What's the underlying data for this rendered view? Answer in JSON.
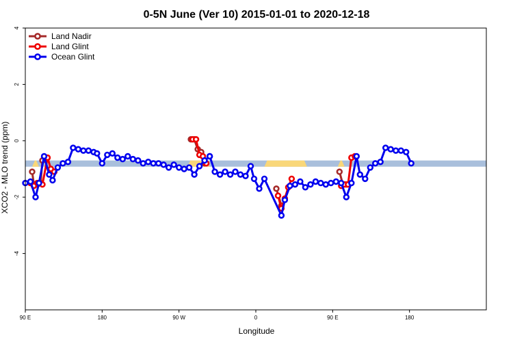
{
  "chart_data": {
    "type": "line",
    "title": "0-5N June (Ver 10)   2015-01-01 to 2020-12-18",
    "xlabel": "Longitude",
    "ylabel": "XCO2 - MLO trend (ppm)",
    "xlim": [
      -90,
      180
    ],
    "ylim": [
      -6,
      4
    ],
    "x_ticks": [
      {
        "value": -90,
        "label": "90 E"
      },
      {
        "value": -45,
        "label": "180"
      },
      {
        "value": 0,
        "label": "90 W"
      },
      {
        "value": 45,
        "label": "0"
      },
      {
        "value": 90,
        "label": "90 E"
      },
      {
        "value": 135,
        "label": "180"
      }
    ],
    "y_ticks": [
      {
        "value": -4,
        "label": "-4"
      },
      {
        "value": -2,
        "label": "-2"
      },
      {
        "value": 0,
        "label": "0"
      },
      {
        "value": 2,
        "label": "2"
      },
      {
        "value": 4,
        "label": "4"
      }
    ],
    "legend_position": "top-left",
    "surface_band": {
      "y_range": [
        -0.92,
        -0.7
      ],
      "ocean_color": "#a9bfdc",
      "land_color": "#f9d779",
      "land_segments": [
        [
          -86,
          -82
        ],
        [
          5,
          18
        ],
        [
          50,
          75
        ],
        [
          93,
          97
        ]
      ]
    },
    "series": [
      {
        "name": "Land Nadir",
        "color": "#a52a2a",
        "segments": [
          {
            "x": [
              -86,
              -85,
              -83,
              -81,
              -80
            ],
            "y": [
              -1.1,
              -1.55,
              -1.55,
              -1.5,
              -0.7
            ]
          },
          {
            "x": [
              7,
              9,
              11,
              13,
              15
            ],
            "y": [
              0.05,
              0.05,
              -0.3,
              -0.4,
              -0.8
            ]
          },
          {
            "x": [
              57,
              60
            ],
            "y": [
              -1.7,
              -2.3
            ]
          },
          {
            "x": [
              94,
              96,
              98
            ],
            "y": [
              -1.1,
              -1.55,
              -1.55
            ]
          }
        ]
      },
      {
        "name": "Land Glint",
        "color": "#ee0000",
        "segments": [
          {
            "x": [
              -87,
              -85,
              -83,
              -80,
              -77,
              -75,
              -73
            ],
            "y": [
              -1.5,
              -1.6,
              -1.5,
              -1.55,
              -0.6,
              -1.0,
              -1.1
            ]
          },
          {
            "x": [
              8,
              10,
              12,
              14,
              16
            ],
            "y": [
              0.05,
              0.05,
              -0.5,
              -0.55,
              -0.8
            ]
          },
          {
            "x": [
              58,
              60,
              62,
              64,
              66
            ],
            "y": [
              -1.95,
              -2.4,
              -2.05,
              -1.65,
              -1.35
            ]
          },
          {
            "x": [
              95,
              97,
              99,
              101,
              103
            ],
            "y": [
              -1.6,
              -1.55,
              -1.55,
              -0.6,
              -0.55
            ]
          }
        ]
      },
      {
        "name": "Ocean Glint",
        "color": "#0000ee",
        "segments": [
          {
            "x": [
              -90,
              -87,
              -84,
              -82,
              -79,
              -76,
              -74,
              -71,
              -68,
              -65,
              -62,
              -59,
              -56,
              -53,
              -50,
              -48,
              -45,
              -42,
              -39,
              -36,
              -33,
              -30,
              -27,
              -24,
              -21,
              -18,
              -15,
              -12,
              -9,
              -6,
              -3,
              0,
              3,
              6,
              9,
              12,
              15,
              18
            ],
            "y": [
              -1.5,
              -1.45,
              -2.0,
              -1.5,
              -0.55,
              -1.2,
              -1.4,
              -0.95,
              -0.8,
              -0.75,
              -0.25,
              -0.3,
              -0.35,
              -0.35,
              -0.4,
              -0.45,
              -0.8,
              -0.5,
              -0.45,
              -0.6,
              -0.65,
              -0.55,
              -0.65,
              -0.7,
              -0.8,
              -0.75,
              -0.8,
              -0.8,
              -0.85,
              -0.95,
              -0.85,
              -0.95,
              -1.0,
              -0.95,
              -1.2,
              -0.9,
              -0.7,
              -0.55
            ]
          },
          {
            "x": [
              18,
              21,
              24,
              27,
              30,
              33,
              36,
              39,
              42,
              44,
              47,
              50,
              60,
              62,
              65,
              68,
              71,
              74,
              77,
              80,
              83,
              86,
              89,
              92,
              95,
              98,
              101,
              104,
              106,
              109,
              112,
              115,
              118,
              121,
              124,
              127,
              130,
              133,
              136
            ],
            "y": [
              -0.55,
              -1.1,
              -1.2,
              -1.1,
              -1.2,
              -1.1,
              -1.2,
              -1.25,
              -0.9,
              -1.35,
              -1.7,
              -1.35,
              -2.65,
              -2.1,
              -1.6,
              -1.55,
              -1.45,
              -1.65,
              -1.55,
              -1.45,
              -1.5,
              -1.55,
              -1.5,
              -1.45,
              -1.5,
              -2.0,
              -1.5,
              -0.55,
              -1.2,
              -1.35,
              -0.95,
              -0.8,
              -0.75,
              -0.25,
              -0.3,
              -0.35,
              -0.35,
              -0.4,
              -0.8
            ]
          }
        ]
      }
    ]
  }
}
